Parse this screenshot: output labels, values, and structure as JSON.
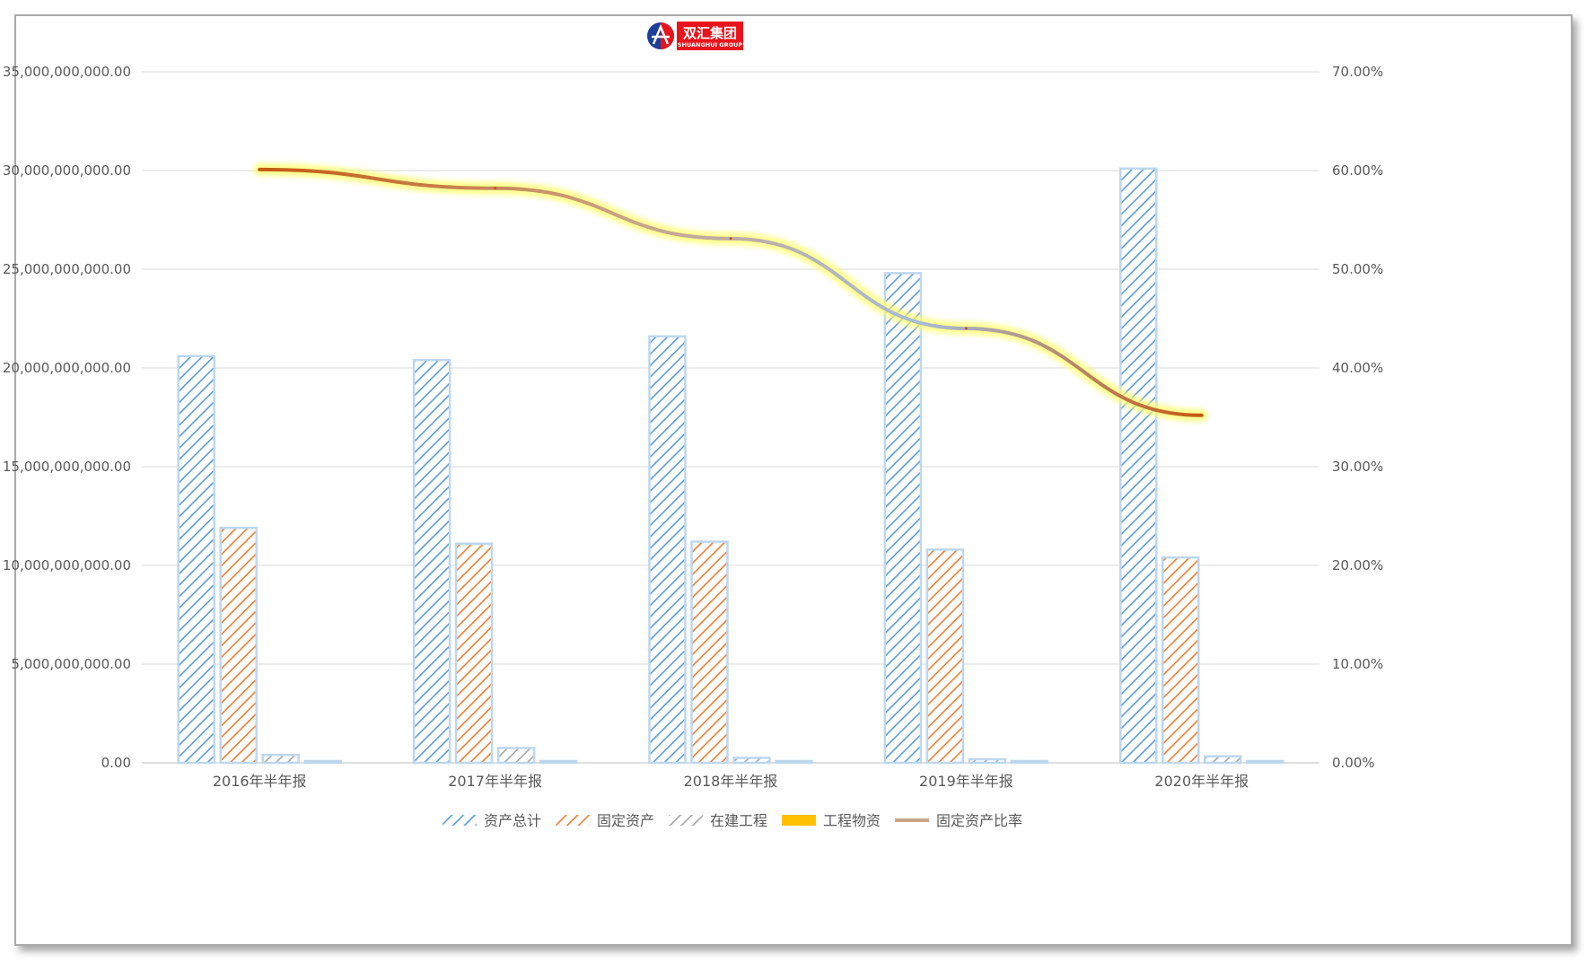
{
  "logo": {
    "name": "双汇集团",
    "subname": "SHUANGHUI GROUP",
    "colors": {
      "box": "#e8141c",
      "circle_blue": "#1d3f9b",
      "circle_red": "#e8141c"
    }
  },
  "chart_data": {
    "type": "bar",
    "categories": [
      "2016年半年报",
      "2017年半年报",
      "2018年半年报",
      "2019年半年报",
      "2020年半年报"
    ],
    "series": [
      {
        "name": "资产总计",
        "type": "bar",
        "axis": "left",
        "color": "#5b9bd5",
        "pattern": "diagonal-hatch",
        "values": [
          20600000000,
          20400000000,
          21600000000,
          24800000000,
          30100000000
        ]
      },
      {
        "name": "固定资产",
        "type": "bar",
        "axis": "left",
        "color": "#ed7d31",
        "pattern": "diagonal-hatch",
        "values": [
          11900000000,
          11100000000,
          11200000000,
          10800000000,
          10400000000
        ]
      },
      {
        "name": "在建工程",
        "type": "bar",
        "axis": "left",
        "color": "#a5a5a5",
        "pattern": "diagonal-hatch",
        "values": [
          400000000,
          750000000,
          250000000,
          180000000,
          330000000
        ]
      },
      {
        "name": "工程物资",
        "type": "bar",
        "axis": "left",
        "color": "#ffc000",
        "pattern": "solid",
        "values": [
          10000000,
          10000000,
          10000000,
          10000000,
          10000000
        ]
      },
      {
        "name": "固定资产比率",
        "type": "line",
        "axis": "right",
        "color": "#c55a11",
        "glow": "#ffff66",
        "values": [
          0.601,
          0.582,
          0.531,
          0.44,
          0.352
        ]
      }
    ],
    "y_left": {
      "min": 0,
      "max": 35000000000,
      "ticks": [
        "0.00",
        "5,000,000,000.00",
        "10,000,000,000.00",
        "15,000,000,000.00",
        "20,000,000,000.00",
        "25,000,000,000.00",
        "30,000,000,000.00",
        "35,000,000,000.00"
      ]
    },
    "y_right": {
      "min": 0,
      "max": 0.7,
      "ticks": [
        "0.00%",
        "10.00%",
        "20.00%",
        "30.00%",
        "40.00%",
        "50.00%",
        "60.00%",
        "70.00%"
      ]
    },
    "grid": true,
    "legend_position": "bottom",
    "colors": {
      "gridline": "#d9d9d9",
      "axis_text": "#595959",
      "bar_glow": "#bdd7ee"
    }
  }
}
